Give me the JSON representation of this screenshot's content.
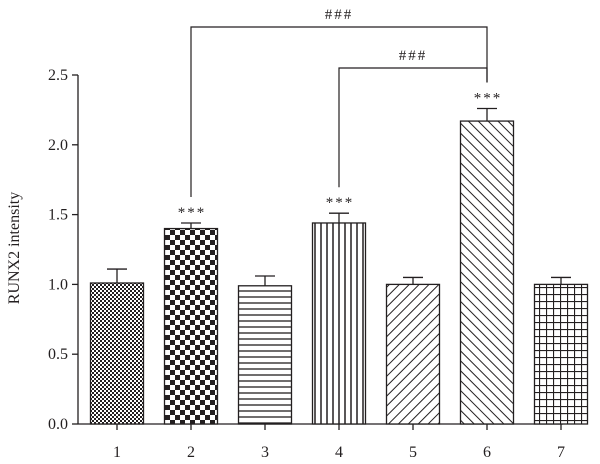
{
  "chart_data": {
    "type": "bar",
    "categories": [
      "1",
      "2",
      "3",
      "4",
      "5",
      "6",
      "7"
    ],
    "values": [
      1.01,
      1.4,
      0.99,
      1.44,
      1.0,
      2.17,
      1.0
    ],
    "errors": [
      0.1,
      0.04,
      0.07,
      0.07,
      0.05,
      0.09,
      0.05
    ],
    "patterns": [
      "fine-check",
      "checkerboard",
      "horizontal",
      "vertical",
      "diag-up",
      "diag-down",
      "grid"
    ],
    "significance": [
      "",
      "***",
      "",
      "***",
      "",
      "***",
      ""
    ],
    "comparisons": [
      {
        "from": "2",
        "to": "6",
        "label": "###"
      },
      {
        "from": "4",
        "to": "6",
        "label": "###"
      }
    ],
    "title": "",
    "xlabel": "",
    "ylabel": "RUNX2 intensity",
    "ylim": [
      0,
      2.5
    ],
    "yticks": [
      "0.0",
      "0.5",
      "1.0",
      "1.5",
      "2.0",
      "2.5"
    ],
    "grid": false,
    "colors": {
      "ink": "#231f20",
      "fill": "#ffffff"
    }
  }
}
